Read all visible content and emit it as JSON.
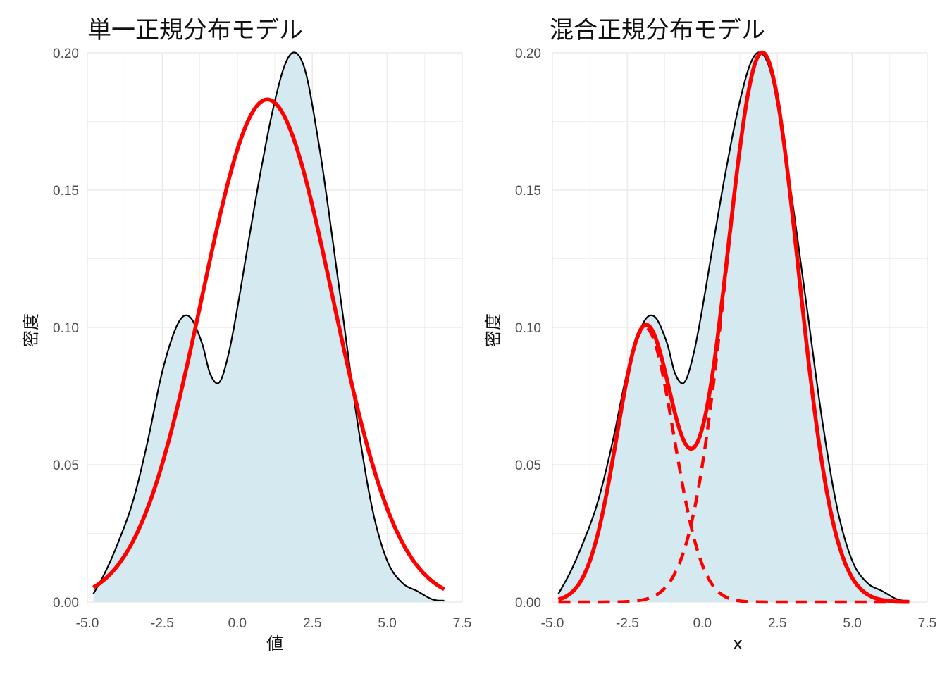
{
  "chart_data": [
    {
      "type": "line",
      "title": "単一正規分布モデル",
      "xlabel": "値",
      "ylabel": "密度",
      "xlim": [
        -5.0,
        7.5
      ],
      "ylim": [
        0.0,
        0.2
      ],
      "x_ticks": [
        "-5.0",
        "-2.5",
        "0.0",
        "2.5",
        "5.0",
        "7.5"
      ],
      "y_ticks": [
        "0.00",
        "0.05",
        "0.10",
        "0.15",
        "0.20"
      ],
      "grid": true,
      "series": [
        {
          "role": "kernel-density",
          "style": "area",
          "fill": "#d4e9f0",
          "line_color": "#000000",
          "x": [
            -4.8,
            -4.4,
            -4.0,
            -3.5,
            -3.0,
            -2.5,
            -2.0,
            -1.6,
            -1.2,
            -0.9,
            -0.6,
            -0.3,
            0.0,
            0.4,
            0.8,
            1.2,
            1.6,
            1.95,
            2.3,
            2.7,
            3.0,
            3.5,
            4.0,
            4.5,
            5.0,
            5.5,
            6.0,
            6.5,
            6.9
          ],
          "y": [
            0.003,
            0.011,
            0.021,
            0.036,
            0.058,
            0.084,
            0.101,
            0.104,
            0.095,
            0.083,
            0.08,
            0.09,
            0.107,
            0.133,
            0.158,
            0.18,
            0.196,
            0.2,
            0.192,
            0.168,
            0.146,
            0.106,
            0.066,
            0.034,
            0.015,
            0.007,
            0.004,
            0.001,
            0.0005
          ]
        },
        {
          "role": "single-normal-fit",
          "style": "line",
          "color": "#ff0000",
          "dash": false,
          "normal": {
            "mean": 1.0,
            "sd": 2.18,
            "weight": 1.0
          },
          "x_range": [
            -4.8,
            6.9
          ]
        }
      ]
    },
    {
      "type": "line",
      "title": "混合正規分布モデル",
      "xlabel": "x",
      "ylabel": "密度",
      "xlim": [
        -5.0,
        7.5
      ],
      "ylim": [
        0.0,
        0.2
      ],
      "x_ticks": [
        "-5.0",
        "-2.5",
        "0.0",
        "2.5",
        "5.0",
        "7.5"
      ],
      "y_ticks": [
        "0.00",
        "0.05",
        "0.10",
        "0.15",
        "0.20"
      ],
      "grid": true,
      "series": [
        {
          "role": "kernel-density",
          "style": "area",
          "fill": "#d4e9f0",
          "line_color": "#000000",
          "x": [
            -4.8,
            -4.4,
            -4.0,
            -3.5,
            -3.0,
            -2.5,
            -2.0,
            -1.6,
            -1.2,
            -0.9,
            -0.6,
            -0.3,
            0.0,
            0.4,
            0.8,
            1.2,
            1.6,
            1.95,
            2.3,
            2.7,
            3.0,
            3.5,
            4.0,
            4.5,
            5.0,
            5.5,
            6.0,
            6.5,
            6.9
          ],
          "y": [
            0.003,
            0.011,
            0.021,
            0.036,
            0.058,
            0.084,
            0.101,
            0.104,
            0.095,
            0.083,
            0.08,
            0.09,
            0.107,
            0.133,
            0.158,
            0.18,
            0.196,
            0.2,
            0.192,
            0.168,
            0.146,
            0.106,
            0.066,
            0.034,
            0.015,
            0.007,
            0.004,
            0.001,
            0.0005
          ]
        },
        {
          "role": "mixture-total",
          "style": "line",
          "color": "#ff0000",
          "dash": false,
          "mixture": [
            {
              "mean": -1.9,
              "sd": 0.95,
              "weight": 0.238
            },
            {
              "mean": 2.0,
              "sd": 1.2,
              "weight": 0.602
            }
          ],
          "x_range": [
            -4.8,
            6.9
          ]
        },
        {
          "role": "component-1",
          "style": "line",
          "color": "#ff0000",
          "dash": true,
          "normal": {
            "mean": -1.9,
            "sd": 0.95,
            "weight": 0.238
          },
          "x_range": [
            -4.8,
            6.9
          ]
        },
        {
          "role": "component-2",
          "style": "line",
          "color": "#ff0000",
          "dash": true,
          "normal": {
            "mean": 2.0,
            "sd": 1.2,
            "weight": 0.602
          },
          "x_range": [
            -4.8,
            6.9
          ]
        }
      ]
    }
  ]
}
